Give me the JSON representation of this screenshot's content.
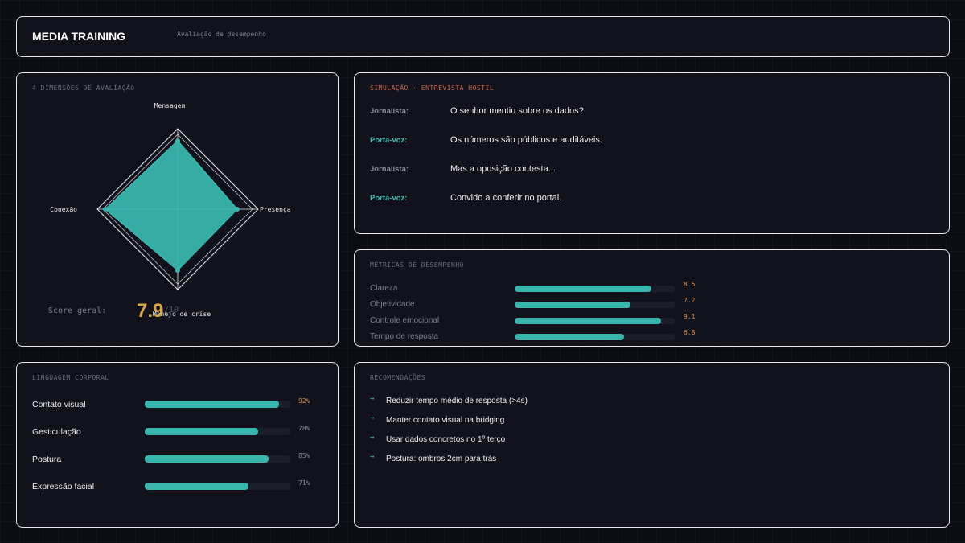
{
  "header": {
    "title": "MEDIA TRAINING",
    "subtitle": "Avaliação de desempenho"
  },
  "radar": {
    "label": "4 DIMENSÕES DE AVALIAÇÃO",
    "max": 10,
    "axes": [
      {
        "name": "Mensagem",
        "value": 8.5
      },
      {
        "name": "Presença",
        "value": 7.4
      },
      {
        "name": "Manejo de crise",
        "value": 7.6
      },
      {
        "name": "Conexão",
        "value": 9.0
      }
    ],
    "fill_color": "#3ab5ad",
    "score_label": "Score geral:",
    "score_value": "7.9",
    "score_max": "/10"
  },
  "simulation": {
    "label": "SIMULAÇÃO · ENTREVISTA HOSTIL",
    "lines": [
      {
        "speaker": "Jornalista:",
        "text": "O senhor mentiu sobre os dados?"
      },
      {
        "speaker": "Porta-voz:",
        "text": "Os números são públicos e auditáveis."
      },
      {
        "speaker": "Jornalista:",
        "text": "Mas a oposição contesta..."
      },
      {
        "speaker": "Porta-voz:",
        "text": "Convido a conferir no portal."
      }
    ]
  },
  "metrics": {
    "label": "MÉTRICAS DE DESEMPENHO",
    "items": [
      {
        "name": "Clareza",
        "value": "8.5"
      },
      {
        "name": "Objetividade",
        "value": "7.2"
      },
      {
        "name": "Controle emocional",
        "value": "9.1"
      },
      {
        "name": "Tempo de resposta",
        "value": "6.8"
      }
    ]
  },
  "body_language": {
    "label": "LINGUAGEM CORPORAL",
    "items": [
      {
        "name": "Contato visual",
        "value": "92%"
      },
      {
        "name": "Gesticulação",
        "value": "78%"
      },
      {
        "name": "Postura",
        "value": "85%"
      },
      {
        "name": "Expressão facial",
        "value": "71%"
      }
    ]
  },
  "recommendations": {
    "label": "RECOMENDAÇÕES",
    "arrow_icon": "arrow-right-icon",
    "items": [
      "Reduzir tempo médio de resposta (>4s)",
      "Manter contato visual na bridging",
      "Usar dados concretos no 1º terço",
      "Postura: ombros 2cm para trás"
    ]
  },
  "colors": {
    "accent": "#3ab5ad",
    "score": "#d9a84e",
    "value_orange": "#e08d52",
    "alert_label": "#c8694c"
  }
}
